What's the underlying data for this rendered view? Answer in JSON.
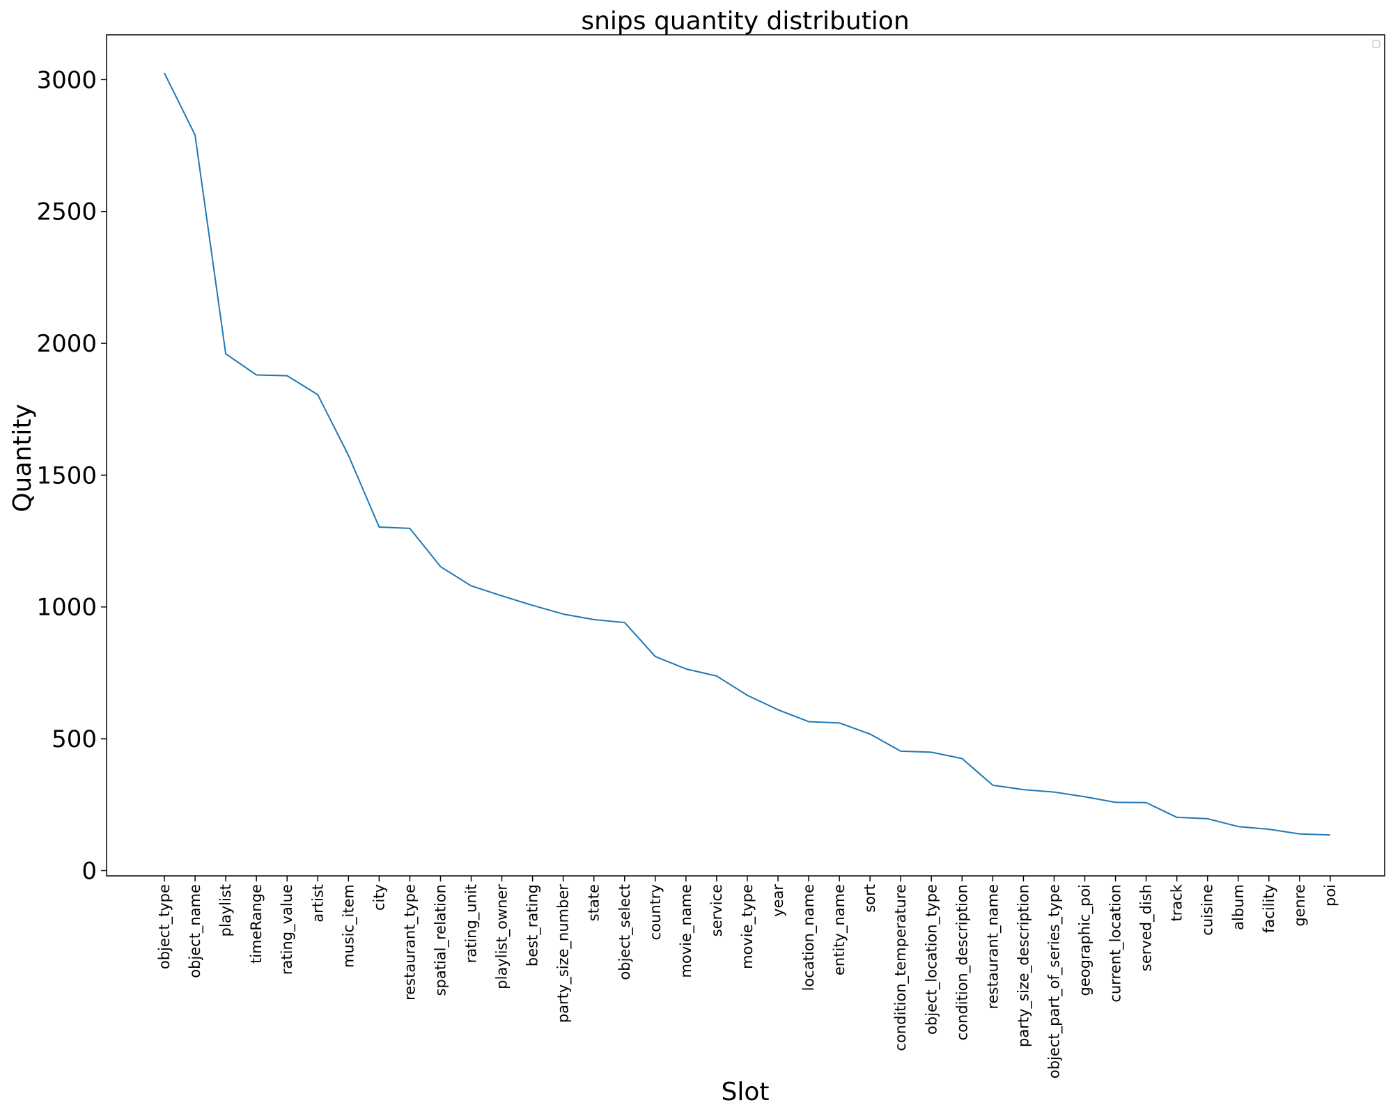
{
  "chart_data": {
    "type": "line",
    "title": "snips quantity distribution",
    "xlabel": "Slot",
    "ylabel": "Quantity",
    "ylim": [
      -20,
      3170
    ],
    "yticks": [
      0,
      500,
      1000,
      1500,
      2000,
      2500,
      3000
    ],
    "grid": false,
    "legend": "top-right (empty)",
    "line_color": "#1f77b4",
    "categories": [
      "object_type",
      "object_name",
      "playlist",
      "timeRange",
      "rating_value",
      "artist",
      "music_item",
      "city",
      "restaurant_type",
      "spatial_relation",
      "rating_unit",
      "playlist_owner",
      "best_rating",
      "party_size_number",
      "state",
      "object_select",
      "country",
      "movie_name",
      "service",
      "movie_type",
      "year",
      "location_name",
      "entity_name",
      "sort",
      "condition_temperature",
      "object_location_type",
      "condition_description",
      "restaurant_name",
      "party_size_description",
      "object_part_of_series_type",
      "geographic_poi",
      "current_location",
      "served_dish",
      "track",
      "cuisine",
      "album",
      "facility",
      "genre",
      "poi"
    ],
    "series": [
      {
        "values": [
          3025,
          2790,
          1960,
          1880,
          1877,
          1805,
          1575,
          1303,
          1298,
          1153,
          1080,
          1042,
          1006,
          973,
          952,
          941,
          812,
          765,
          738,
          665,
          610,
          565,
          560,
          518,
          453,
          449,
          425,
          324,
          307,
          298,
          280,
          259,
          258,
          202,
          197,
          167,
          157,
          139,
          135
        ]
      }
    ]
  }
}
